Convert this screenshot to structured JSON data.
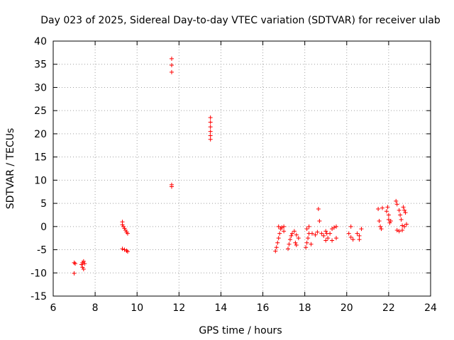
{
  "chart_data": {
    "type": "scatter",
    "title": "Day 023 of 2025, Sidereal Day-to-day VTEC variation (SDTVAR) for receiver ulab",
    "xlabel": "GPS time / hours",
    "ylabel": "SDTVAR / TECUs",
    "xlim": [
      6,
      24
    ],
    "ylim": [
      -15,
      40
    ],
    "xticks": [
      6,
      8,
      10,
      12,
      14,
      16,
      18,
      20,
      22,
      24
    ],
    "yticks": [
      -15,
      -10,
      -5,
      0,
      5,
      10,
      15,
      20,
      25,
      30,
      35,
      40
    ],
    "grid": true,
    "marker": "plus",
    "color": "#ff0000",
    "series": [
      {
        "name": "SDTVAR",
        "points": [
          [
            7.0,
            -10.1
          ],
          [
            7.0,
            -7.8
          ],
          [
            7.05,
            -8.0
          ],
          [
            7.35,
            -8.2
          ],
          [
            7.4,
            -8.8
          ],
          [
            7.45,
            -9.2
          ],
          [
            7.4,
            -7.8
          ],
          [
            7.45,
            -7.5
          ],
          [
            7.5,
            -8.0
          ],
          [
            9.3,
            1.0
          ],
          [
            9.3,
            0.4
          ],
          [
            9.35,
            0.0
          ],
          [
            9.4,
            -0.4
          ],
          [
            9.45,
            -0.8
          ],
          [
            9.5,
            -1.2
          ],
          [
            9.55,
            -1.5
          ],
          [
            9.3,
            -4.8
          ],
          [
            9.4,
            -5.0
          ],
          [
            9.5,
            -5.2
          ],
          [
            9.55,
            -5.4
          ],
          [
            11.65,
            36.2
          ],
          [
            11.65,
            34.8
          ],
          [
            11.65,
            33.3
          ],
          [
            11.65,
            9.0
          ],
          [
            11.65,
            8.6
          ],
          [
            13.5,
            23.5
          ],
          [
            13.5,
            22.5
          ],
          [
            13.5,
            21.5
          ],
          [
            13.5,
            20.5
          ],
          [
            13.5,
            19.6
          ],
          [
            13.5,
            18.8
          ],
          [
            16.6,
            -5.3
          ],
          [
            16.65,
            -4.5
          ],
          [
            16.7,
            -3.5
          ],
          [
            16.75,
            -2.5
          ],
          [
            16.8,
            -1.5
          ],
          [
            16.85,
            -0.5
          ],
          [
            16.75,
            0.0
          ],
          [
            16.9,
            -0.2
          ],
          [
            17.0,
            0.0
          ],
          [
            17.0,
            -1.0
          ],
          [
            17.2,
            -4.8
          ],
          [
            17.25,
            -3.8
          ],
          [
            17.3,
            -2.8
          ],
          [
            17.35,
            -2.0
          ],
          [
            17.4,
            -1.5
          ],
          [
            17.5,
            -1.0
          ],
          [
            17.6,
            -1.8
          ],
          [
            17.7,
            -2.5
          ],
          [
            17.55,
            -3.5
          ],
          [
            17.6,
            -4.0
          ],
          [
            18.05,
            -4.5
          ],
          [
            18.1,
            -3.5
          ],
          [
            18.15,
            -2.5
          ],
          [
            18.2,
            -1.5
          ],
          [
            18.1,
            -0.5
          ],
          [
            18.2,
            0.0
          ],
          [
            18.3,
            -3.8
          ],
          [
            18.35,
            -1.5
          ],
          [
            18.5,
            -1.8
          ],
          [
            18.6,
            -1.2
          ],
          [
            18.65,
            3.8
          ],
          [
            18.7,
            1.2
          ],
          [
            18.8,
            -1.5
          ],
          [
            18.9,
            -2.0
          ],
          [
            19.0,
            -1.0
          ],
          [
            19.05,
            -1.5
          ],
          [
            19.0,
            -3.0
          ],
          [
            19.1,
            -2.5
          ],
          [
            19.2,
            -1.5
          ],
          [
            19.3,
            -0.5
          ],
          [
            19.4,
            -0.2
          ],
          [
            19.5,
            0.0
          ],
          [
            19.3,
            -3.0
          ],
          [
            19.5,
            -2.5
          ],
          [
            20.1,
            -1.5
          ],
          [
            20.2,
            -2.3
          ],
          [
            20.3,
            -2.8
          ],
          [
            20.2,
            0.0
          ],
          [
            20.6,
            -2.0
          ],
          [
            20.6,
            -2.8
          ],
          [
            20.7,
            -0.5
          ],
          [
            20.5,
            -1.5
          ],
          [
            21.5,
            3.8
          ],
          [
            21.55,
            1.2
          ],
          [
            21.6,
            0.0
          ],
          [
            21.65,
            -0.5
          ],
          [
            21.7,
            4.0
          ],
          [
            21.9,
            3.3
          ],
          [
            21.95,
            4.2
          ],
          [
            22.0,
            2.5
          ],
          [
            22.0,
            1.5
          ],
          [
            22.05,
            0.8
          ],
          [
            22.1,
            1.2
          ],
          [
            22.35,
            5.5
          ],
          [
            22.4,
            4.8
          ],
          [
            22.5,
            3.5
          ],
          [
            22.55,
            2.5
          ],
          [
            22.6,
            1.5
          ],
          [
            22.65,
            0.2
          ],
          [
            22.5,
            -1.0
          ],
          [
            22.4,
            -0.8
          ],
          [
            22.7,
            4.2
          ],
          [
            22.75,
            3.5
          ],
          [
            22.8,
            3.0
          ],
          [
            22.85,
            0.5
          ],
          [
            22.75,
            0.0
          ],
          [
            22.65,
            -0.8
          ]
        ]
      }
    ]
  }
}
